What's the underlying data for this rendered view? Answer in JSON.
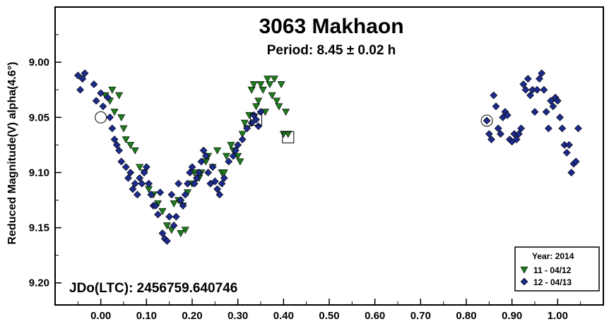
{
  "chart_data": {
    "type": "scatter",
    "title": "3063 Makhaon",
    "subtitle": "Period: 8.45 ± 0.02 h",
    "xlabel": "",
    "ylabel": "Reduced Magnitude(V) alpha(4.6°)",
    "annotation": "JDo(LTC): 2456759.640746",
    "xlim": [
      -0.1,
      1.1
    ],
    "ylim": [
      9.22,
      8.95
    ],
    "y_inverted": true,
    "x_ticks": [
      0.0,
      0.1,
      0.2,
      0.3,
      0.4,
      0.5,
      0.6,
      0.7,
      0.8,
      0.9,
      1.0
    ],
    "x_tick_labels": [
      "0.00",
      "0.10",
      "0.20",
      "0.30",
      "0.40",
      "0.50",
      "0.60",
      "0.70",
      "0.80",
      "0.90",
      "1.00"
    ],
    "y_ticks": [
      9.0,
      9.05,
      9.1,
      9.15,
      9.2
    ],
    "y_tick_labels": [
      "9.00",
      "9.05",
      "9.10",
      "9.15",
      "9.20"
    ],
    "grid": false,
    "legend": {
      "position": "bottom-right",
      "title": "Year: 2014",
      "entries": [
        "11 - 04/12",
        "12 - 04/13"
      ]
    },
    "series": [
      {
        "name": "11 - 04/12",
        "marker": "triangle-down",
        "color": "#1e7b1e",
        "points": [
          [
            0.01,
            9.03
          ],
          [
            0.02,
            9.035
          ],
          [
            0.025,
            9.025
          ],
          [
            0.03,
            9.045
          ],
          [
            0.04,
            9.03
          ],
          [
            0.045,
            9.05
          ],
          [
            0.05,
            9.06
          ],
          [
            0.055,
            9.07
          ],
          [
            0.065,
            9.075
          ],
          [
            0.075,
            9.08
          ],
          [
            0.085,
            9.095
          ],
          [
            0.095,
            9.1
          ],
          [
            0.105,
            9.115
          ],
          [
            0.115,
            9.12
          ],
          [
            0.125,
            9.128
          ],
          [
            0.135,
            9.135
          ],
          [
            0.145,
            9.148
          ],
          [
            0.155,
            9.152
          ],
          [
            0.16,
            9.128
          ],
          [
            0.17,
            9.125
          ],
          [
            0.175,
            9.155
          ],
          [
            0.18,
            9.13
          ],
          [
            0.185,
            9.152
          ],
          [
            0.19,
            9.118
          ],
          [
            0.2,
            9.11
          ],
          [
            0.205,
            9.1
          ],
          [
            0.215,
            9.105
          ],
          [
            0.22,
            9.1
          ],
          [
            0.23,
            9.09
          ],
          [
            0.235,
            9.085
          ],
          [
            0.245,
            9.095
          ],
          [
            0.255,
            9.08
          ],
          [
            0.265,
            9.1
          ],
          [
            0.27,
            9.1
          ],
          [
            0.275,
            9.085
          ],
          [
            0.285,
            9.075
          ],
          [
            0.29,
            9.08
          ],
          [
            0.3,
            9.085
          ],
          [
            0.305,
            9.09
          ],
          [
            0.31,
            9.065
          ],
          [
            0.315,
            9.055
          ],
          [
            0.32,
            9.06
          ],
          [
            0.325,
            9.048
          ],
          [
            0.33,
            9.025
          ],
          [
            0.335,
            9.02
          ],
          [
            0.34,
            9.04
          ],
          [
            0.345,
            9.035
          ],
          [
            0.35,
            9.02
          ],
          [
            0.355,
            9.025
          ],
          [
            0.36,
            9.045
          ],
          [
            0.365,
            9.015
          ],
          [
            0.37,
            9.02
          ],
          [
            0.375,
            9.03
          ],
          [
            0.38,
            9.015
          ],
          [
            0.385,
            9.035
          ],
          [
            0.39,
            9.04
          ],
          [
            0.395,
            9.02
          ],
          [
            0.4,
            9.065
          ],
          [
            0.405,
            9.045
          ],
          [
            0.41,
            9.065
          ]
        ]
      },
      {
        "name": "12 - 04/13",
        "marker": "diamond",
        "color": "#1c2a8a",
        "points": [
          [
            -0.05,
            9.012
          ],
          [
            -0.045,
            9.025
          ],
          [
            -0.04,
            9.015
          ],
          [
            -0.035,
            9.01
          ],
          [
            -0.015,
            9.02
          ],
          [
            -0.01,
            9.035
          ],
          [
            0.0,
            9.028
          ],
          [
            0.005,
            9.04
          ],
          [
            0.015,
            9.032
          ],
          [
            0.02,
            9.05
          ],
          [
            0.025,
            9.06
          ],
          [
            0.03,
            9.07
          ],
          [
            0.035,
            9.075
          ],
          [
            0.04,
            9.08
          ],
          [
            0.045,
            9.09
          ],
          [
            0.055,
            9.095
          ],
          [
            0.06,
            9.105
          ],
          [
            0.065,
            9.1
          ],
          [
            0.07,
            9.115
          ],
          [
            0.075,
            9.11
          ],
          [
            0.08,
            9.12
          ],
          [
            0.085,
            9.105
          ],
          [
            0.09,
            9.11
          ],
          [
            0.095,
            9.1
          ],
          [
            0.1,
            9.095
          ],
          [
            0.105,
            9.11
          ],
          [
            0.11,
            9.12
          ],
          [
            0.115,
            9.13
          ],
          [
            0.12,
            9.13
          ],
          [
            0.125,
            9.138
          ],
          [
            0.13,
            9.118
          ],
          [
            0.135,
            9.155
          ],
          [
            0.14,
            9.16
          ],
          [
            0.145,
            9.162
          ],
          [
            0.15,
            9.14
          ],
          [
            0.155,
            9.12
          ],
          [
            0.16,
            9.148
          ],
          [
            0.165,
            9.14
          ],
          [
            0.17,
            9.11
          ],
          [
            0.175,
            9.125
          ],
          [
            0.18,
            9.13
          ],
          [
            0.185,
            9.12
          ],
          [
            0.19,
            9.11
          ],
          [
            0.195,
            9.1
          ],
          [
            0.2,
            9.095
          ],
          [
            0.205,
            9.11
          ],
          [
            0.21,
            9.105
          ],
          [
            0.215,
            9.1
          ],
          [
            0.22,
            9.09
          ],
          [
            0.225,
            9.08
          ],
          [
            0.23,
            9.085
          ],
          [
            0.235,
            9.1
          ],
          [
            0.24,
            9.11
          ],
          [
            0.245,
            9.095
          ],
          [
            0.25,
            9.108
          ],
          [
            0.255,
            9.115
          ],
          [
            0.26,
            9.12
          ],
          [
            0.265,
            9.11
          ],
          [
            0.27,
            9.105
          ],
          [
            0.28,
            9.09
          ],
          [
            0.29,
            9.085
          ],
          [
            0.295,
            9.08
          ],
          [
            0.3,
            9.075
          ],
          [
            0.31,
            9.07
          ],
          [
            0.32,
            9.06
          ],
          [
            0.33,
            9.055
          ],
          [
            0.335,
            9.048
          ],
          [
            0.34,
            9.052
          ],
          [
            0.345,
            9.058
          ],
          [
            0.35,
            9.045
          ],
          [
            0.845,
            9.053
          ],
          [
            0.85,
            9.065
          ],
          [
            0.855,
            9.07
          ],
          [
            0.86,
            9.03
          ],
          [
            0.865,
            9.04
          ],
          [
            0.87,
            9.06
          ],
          [
            0.875,
            9.065
          ],
          [
            0.88,
            9.05
          ],
          [
            0.885,
            9.045
          ],
          [
            0.89,
            9.048
          ],
          [
            0.895,
            9.07
          ],
          [
            0.9,
            9.072
          ],
          [
            0.905,
            9.065
          ],
          [
            0.91,
            9.07
          ],
          [
            0.915,
            9.065
          ],
          [
            0.92,
            9.06
          ],
          [
            0.925,
            9.02
          ],
          [
            0.93,
            9.025
          ],
          [
            0.935,
            9.015
          ],
          [
            0.94,
            9.03
          ],
          [
            0.945,
            9.025
          ],
          [
            0.95,
            9.045
          ],
          [
            0.955,
            9.025
          ],
          [
            0.96,
            9.015
          ],
          [
            0.965,
            9.01
          ],
          [
            0.97,
            9.025
          ],
          [
            0.975,
            9.045
          ],
          [
            0.98,
            9.06
          ],
          [
            0.985,
            9.035
          ],
          [
            0.99,
            9.04
          ],
          [
            0.995,
            9.032
          ],
          [
            1.0,
            9.035
          ],
          [
            1.005,
            9.05
          ],
          [
            1.01,
            9.06
          ],
          [
            1.015,
            9.075
          ],
          [
            1.02,
            9.082
          ],
          [
            1.025,
            9.075
          ],
          [
            1.03,
            9.1
          ],
          [
            1.035,
            9.092
          ],
          [
            1.04,
            9.09
          ],
          [
            1.045,
            9.06
          ]
        ]
      }
    ],
    "highlighted_points": [
      {
        "marker": "circle",
        "x": 0.0,
        "y": 9.05,
        "series": "11 - 04/12"
      },
      {
        "marker": "circle",
        "x": 0.845,
        "y": 9.053,
        "series": "12 - 04/13"
      },
      {
        "marker": "square",
        "x": 0.34,
        "y": 9.052,
        "series": "12 - 04/13"
      },
      {
        "marker": "square",
        "x": 0.41,
        "y": 9.068,
        "series": "11 - 04/12"
      }
    ]
  }
}
